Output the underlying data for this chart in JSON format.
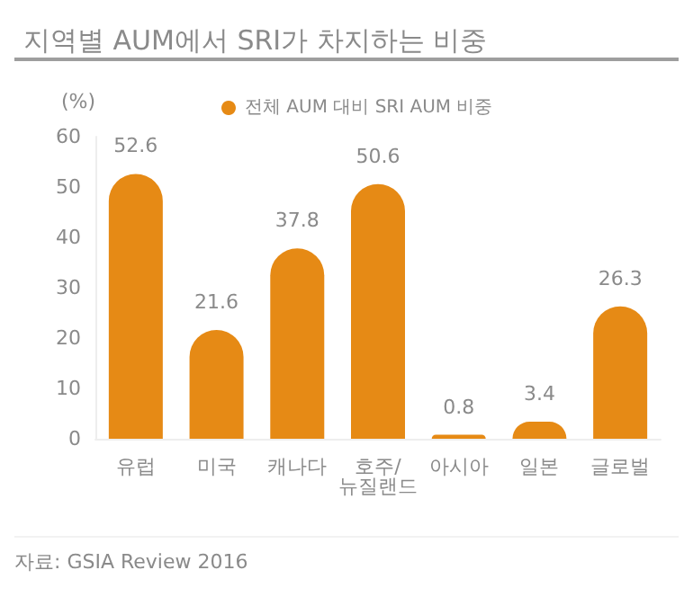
{
  "chart_data": {
    "type": "bar",
    "title": "지역별 AUM에서 SRI가 차지하는 비중",
    "ylabel": "(%)",
    "categories": [
      "유럽",
      "미국",
      "캐나다",
      "호주/뉴질랜드",
      "아시아",
      "일본",
      "글로벌"
    ],
    "series": [
      {
        "name": "전체 AUM 대비 SRI AUM 비중",
        "color": "#e68a15",
        "values": [
          52.6,
          21.6,
          37.8,
          50.6,
          0.8,
          3.4,
          26.3
        ]
      }
    ],
    "ylim": [
      0,
      60
    ],
    "yticks": [
      0,
      10,
      20,
      30,
      40,
      50,
      60
    ],
    "data_labels": true,
    "legend": "top",
    "annotations": [
      "자료: GSIA Review 2016"
    ]
  }
}
